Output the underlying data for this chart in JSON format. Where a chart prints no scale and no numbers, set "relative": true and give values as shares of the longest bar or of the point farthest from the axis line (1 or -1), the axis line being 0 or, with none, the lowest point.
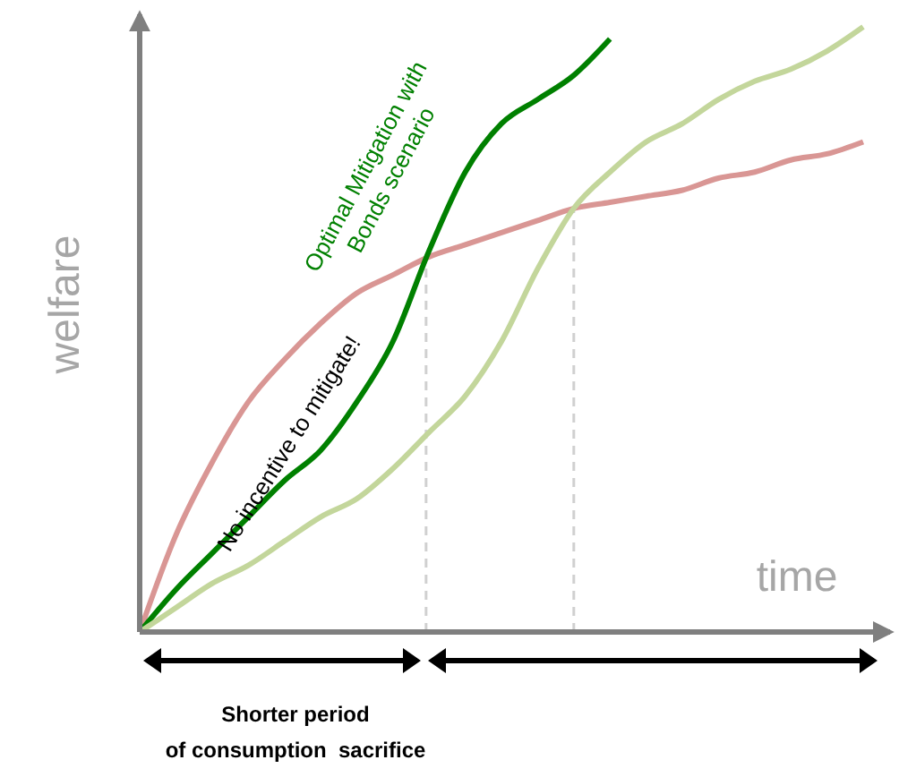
{
  "chart_data": {
    "type": "line",
    "relative": true,
    "xlabel": "time",
    "ylabel": "welfare",
    "categories": [
      null,
      null,
      null,
      null,
      null,
      null,
      null,
      null,
      null,
      null,
      null,
      null,
      null,
      null,
      null,
      null,
      null,
      null,
      null,
      null,
      null
    ],
    "series": [
      {
        "color": "#d99694",
        "values": [
          0,
          0.16,
          0.28,
          0.38,
          0.45,
          0.51,
          0.56,
          0.59,
          0.62,
          0.64,
          0.66,
          0.68,
          0.7,
          0.71,
          0.72,
          0.73,
          0.75,
          0.76,
          0.78,
          0.79,
          0.81
        ]
      },
      {
        "color": "#008000",
        "values": [
          0,
          0.07,
          0.13,
          0.19,
          0.25,
          0.3,
          0.38,
          0.48,
          0.63,
          0.76,
          0.84,
          0.88,
          0.92,
          0.98,
          null,
          null,
          null,
          null,
          null,
          null,
          null
        ]
      },
      {
        "color": "#c3d69b",
        "values": [
          0,
          0.04,
          0.08,
          0.11,
          0.15,
          0.19,
          0.22,
          0.27,
          0.33,
          0.39,
          0.48,
          0.6,
          0.7,
          0.76,
          0.81,
          0.84,
          0.88,
          0.91,
          0.93,
          0.96,
          1
        ]
      }
    ],
    "annotations": [
      "Optimal Mitigation with\nBonds scenario",
      "No incentive to mitigate!",
      "Shorter period\nof consumption  sacrifice"
    ],
    "marker": "none",
    "line_style": "solid"
  }
}
